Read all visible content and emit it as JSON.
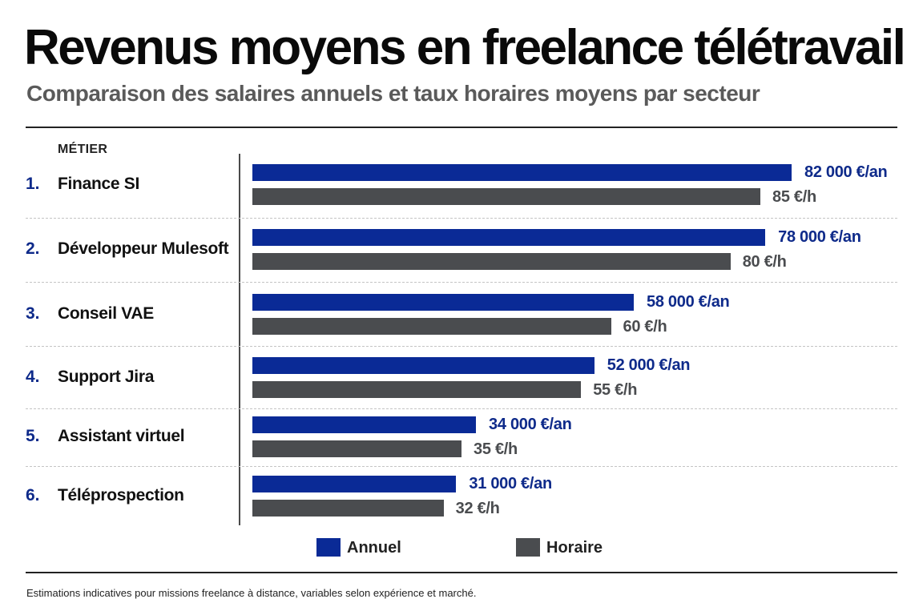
{
  "header": {
    "title": "Revenus moyens en freelance télétravail",
    "subtitle": "Comparaison des salaires annuels et taux horaires moyens par secteur"
  },
  "colors": {
    "annual": "#0a2a96",
    "hourly": "#4a4c4f",
    "rank": "#0e2a8a"
  },
  "chart_data": {
    "type": "bar",
    "orientation": "horizontal",
    "column_header": "MÉTIER",
    "categories": [
      {
        "rank": "1.",
        "name": "Finance SI"
      },
      {
        "rank": "2.",
        "name": "Développeur Mulesoft"
      },
      {
        "rank": "3.",
        "name": "Conseil VAE"
      },
      {
        "rank": "4.",
        "name": "Support Jira"
      },
      {
        "rank": "5.",
        "name": "Assistant virtuel"
      },
      {
        "rank": "6.",
        "name": "Téléprospection"
      }
    ],
    "series": [
      {
        "name": "Annuel",
        "values": [
          82000,
          78000,
          58000,
          52000,
          34000,
          31000
        ],
        "labels": [
          "82 000 €/an",
          "78 000 €/an",
          "58 000 €/an",
          "52 000 €/an",
          "34 000 €/an",
          "31 000 €/an"
        ]
      },
      {
        "name": "Horaire",
        "values": [
          85,
          80,
          60,
          55,
          35,
          32
        ],
        "labels": [
          "85 €/h",
          "80 €/h",
          "60 €/h",
          "55 €/h",
          "35 €/h",
          "32 €/h"
        ]
      }
    ],
    "legend": {
      "position": "bottom-center",
      "items": [
        "Annuel",
        "Horaire"
      ]
    },
    "grid": false
  },
  "footnote": "Estimations indicatives pour missions freelance à distance, variables selon expérience et marché."
}
